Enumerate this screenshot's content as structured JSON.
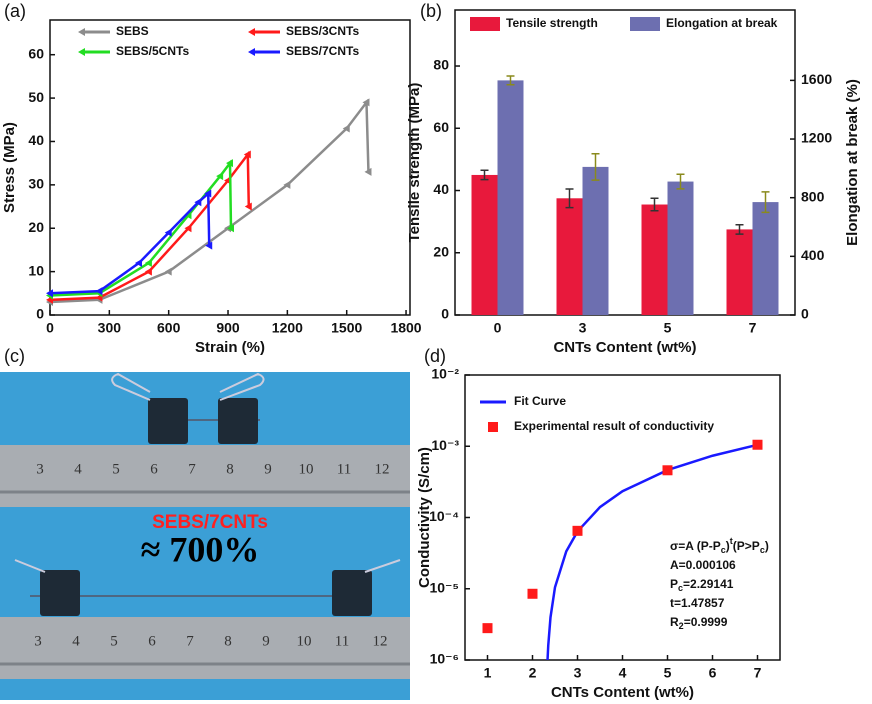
{
  "chart_data": [
    {
      "type": "line",
      "label": "(a)",
      "x_label": "Strain (%)",
      "y_label": "Stress (MPa)",
      "xlim": [
        0,
        1820
      ],
      "ylim": [
        0,
        68
      ],
      "xticks": [
        0,
        300,
        600,
        900,
        1200,
        1500,
        1800
      ],
      "yticks": [
        0,
        10,
        20,
        30,
        40,
        50,
        60
      ],
      "series": [
        {
          "name": "SEBS",
          "color": "#8c8c8c",
          "x": [
            0,
            250,
            600,
            900,
            1200,
            1500,
            1600,
            1610
          ],
          "values": [
            3,
            3.5,
            10,
            20,
            30,
            43,
            49,
            33
          ]
        },
        {
          "name": "SEBS/3CNTs",
          "color": "#ff1a1a",
          "x": [
            0,
            250,
            500,
            700,
            900,
            1000,
            1005
          ],
          "values": [
            3.5,
            4,
            10,
            20,
            31,
            37,
            25
          ]
        },
        {
          "name": "SEBS/5CNTs",
          "color": "#22dd22",
          "x": [
            0,
            250,
            500,
            700,
            860,
            910,
            915
          ],
          "values": [
            4.5,
            5,
            12,
            23,
            32,
            35,
            20
          ]
        },
        {
          "name": "SEBS/7CNTs",
          "color": "#1a1aff",
          "x": [
            0,
            250,
            450,
            600,
            750,
            800,
            805
          ],
          "values": [
            5,
            5.5,
            12,
            19,
            26,
            28,
            16
          ]
        }
      ]
    },
    {
      "type": "bar",
      "label": "(b)",
      "x_label": "CNTs Content (wt%)",
      "y_label": "Tensile strength (MPa)",
      "y2_label": "Elongation at break (%)",
      "categories": [
        "0",
        "3",
        "5",
        "7"
      ],
      "ylim": [
        0,
        98
      ],
      "yticks": [
        0,
        20,
        40,
        60,
        80
      ],
      "y2lim": [
        0,
        2080
      ],
      "y2ticks": [
        0,
        400,
        800,
        1200,
        1600
      ],
      "series": [
        {
          "name": "Tensile strength",
          "color": "#e8193c",
          "error_color": "#333333",
          "values": [
            45,
            37.5,
            35.5,
            27.5
          ],
          "errors": [
            1.5,
            3,
            2,
            1.5
          ]
        },
        {
          "name": "Elongation at break",
          "color": "#6d6fb0",
          "error_color": "#8a8a1c",
          "axis": "y2",
          "values": [
            1600,
            1010,
            910,
            770
          ],
          "errors": [
            30,
            90,
            50,
            70
          ]
        }
      ]
    },
    {
      "type": "scatter",
      "label": "(d)",
      "x_label": "CNTs Content (wt%)",
      "y_label": "Conductivity (S/cm)",
      "xlim": [
        0.5,
        7.5
      ],
      "xticks": [
        1,
        2,
        3,
        4,
        5,
        6,
        7
      ],
      "ylim": [
        1e-06,
        0.01
      ],
      "log_y": true,
      "yticks": [
        {
          "value": 1e-06,
          "label": "10⁻⁶"
        },
        {
          "value": 1e-05,
          "label": "10⁻⁵"
        },
        {
          "value": 0.0001,
          "label": "10⁻⁴"
        },
        {
          "value": 0.001,
          "label": "10⁻³"
        },
        {
          "value": 0.01,
          "label": "10⁻²"
        }
      ],
      "series": [
        {
          "name": "Fit Curve",
          "style": "line",
          "color": "#1a1aff",
          "x": [
            2.334,
            2.35,
            2.4,
            2.5,
            2.75,
            3,
            3.5,
            4,
            5,
            6,
            7
          ],
          "values": [
            1e-06,
            1.6e-06,
            3.98e-06,
            1.05e-05,
            3.35e-05,
            6.37e-05,
            0.00014,
            0.000234,
            0.000463,
            0.000736,
            0.001048
          ]
        },
        {
          "name": "Experimental result of conductivity",
          "style": "marker",
          "color": "#ff1a1a",
          "x": [
            1,
            2,
            3,
            5,
            7
          ],
          "values": [
            2.8e-06,
            8.5e-06,
            6.5e-05,
            0.00046,
            0.00105
          ]
        }
      ],
      "annotation": [
        [
          {
            "t": "σ=A (P-P"
          },
          {
            "t": "c",
            "sub": true
          },
          {
            "t": ")"
          },
          {
            "t": "t",
            "sup": true
          },
          {
            "t": "(P>P"
          },
          {
            "t": "c",
            "sub": true
          },
          {
            "t": ")"
          }
        ],
        [
          {
            "t": "A=0.000106"
          }
        ],
        [
          {
            "t": "P"
          },
          {
            "t": "c",
            "sub": true
          },
          {
            "t": "=2.29141"
          }
        ],
        [
          {
            "t": "t=1.47857"
          }
        ],
        [
          {
            "t": "R"
          },
          {
            "t": "2",
            "sub": true
          },
          {
            "t": "=0.9999"
          }
        ]
      ]
    }
  ],
  "photo": {
    "label": "(c)",
    "sample": "SEBS/7CNTs",
    "strain": "≈ 700%",
    "ruler_top": [
      "3",
      "4",
      "5",
      "6",
      "7",
      "8",
      "9",
      "10",
      "11",
      "12"
    ],
    "ruler_bottom": [
      "3",
      "4",
      "5",
      "6",
      "7",
      "8",
      "9",
      "10",
      "11",
      "12"
    ]
  }
}
